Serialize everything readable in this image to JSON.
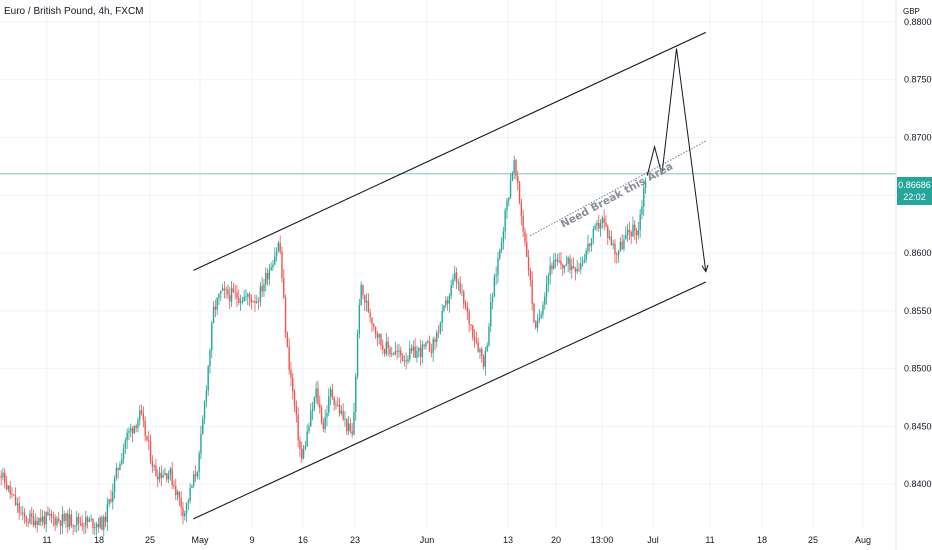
{
  "header": {
    "title": "Euro / British Pound, 4h, FXCM",
    "currency": "GBP"
  },
  "current_price": {
    "value": "0.86686",
    "countdown": "22:02",
    "color": "#26a69a"
  },
  "annotation": {
    "text": "Need Break this Area"
  },
  "colors": {
    "up": "#26a69a",
    "down": "#ef5350",
    "grid": "#f0f3fa",
    "lines": "#131722"
  },
  "chart_data": {
    "type": "candlestick",
    "title": "Euro / British Pound, 4h, FXCM",
    "ylabel": "GBP",
    "ylim": [
      0.8363,
      0.8819
    ],
    "y_ticks": [
      "0.88000",
      "0.87500",
      "0.87000",
      "0.86500",
      "0.86000",
      "0.85500",
      "0.85000",
      "0.84500",
      "0.84000"
    ],
    "x_ticks": [
      "11",
      "18",
      "25",
      "May",
      "9",
      "16",
      "23",
      "Jun",
      "13",
      "20",
      "13:00",
      "Jul",
      "11",
      "18",
      "25",
      "Aug"
    ],
    "grid": true,
    "current_price": 0.86686,
    "anchors": [
      {
        "x": "Apr 4",
        "y": 0.842
      },
      {
        "x": "Apr 8",
        "y": 0.837
      },
      {
        "x": "Apr 12",
        "y": 0.837
      },
      {
        "x": "Apr 19",
        "y": 0.8366
      },
      {
        "x": "Apr 22",
        "y": 0.844
      },
      {
        "x": "Apr 24",
        "y": 0.846
      },
      {
        "x": "Apr 26",
        "y": 0.841
      },
      {
        "x": "Apr 28",
        "y": 0.841
      },
      {
        "x": "Apr 30",
        "y": 0.8375
      },
      {
        "x": "May 2",
        "y": 0.842
      },
      {
        "x": "May 4",
        "y": 0.855
      },
      {
        "x": "May 5",
        "y": 0.8565
      },
      {
        "x": "May 10",
        "y": 0.856
      },
      {
        "x": "May 13",
        "y": 0.861
      },
      {
        "x": "May 14",
        "y": 0.852
      },
      {
        "x": "May 16",
        "y": 0.842
      },
      {
        "x": "May 18",
        "y": 0.848
      },
      {
        "x": "May 19",
        "y": 0.845
      },
      {
        "x": "May 20",
        "y": 0.848
      },
      {
        "x": "May 23",
        "y": 0.844
      },
      {
        "x": "May 24",
        "y": 0.857
      },
      {
        "x": "May 27",
        "y": 0.852
      },
      {
        "x": "May 30",
        "y": 0.851
      },
      {
        "x": "Jun 3",
        "y": 0.852
      },
      {
        "x": "Jun 6",
        "y": 0.858
      },
      {
        "x": "Jun 8",
        "y": 0.854
      },
      {
        "x": "Jun 10",
        "y": 0.8505
      },
      {
        "x": "Jun 11",
        "y": 0.856
      },
      {
        "x": "Jun 13",
        "y": 0.864
      },
      {
        "x": "Jun 14",
        "y": 0.868
      },
      {
        "x": "Jun 16",
        "y": 0.859
      },
      {
        "x": "Jun 17",
        "y": 0.853
      },
      {
        "x": "Jun 19",
        "y": 0.859
      },
      {
        "x": "Jun 23",
        "y": 0.859
      },
      {
        "x": "Jun 26",
        "y": 0.863
      },
      {
        "x": "Jun 28",
        "y": 0.86
      },
      {
        "x": "Jun 30",
        "y": 0.862
      },
      {
        "x": "Jul 1",
        "y": 0.862
      },
      {
        "x": "Jul 2",
        "y": 0.8666
      }
    ],
    "overlays": {
      "channel_upper": [
        {
          "x": "May 1",
          "y": 0.8585
        },
        {
          "x": "Jul 10",
          "y": 0.8791
        }
      ],
      "channel_lower": [
        {
          "x": "May 1",
          "y": 0.837
        },
        {
          "x": "Jul 10",
          "y": 0.8575
        }
      ],
      "resistance_line": [
        {
          "x": "Jun 16",
          "y": 0.8615
        },
        {
          "x": "Jul 10",
          "y": 0.8697
        }
      ],
      "projection": [
        {
          "x": "Jul 2",
          "y": 0.8667
        },
        {
          "x": "Jul 3",
          "y": 0.8692
        },
        {
          "x": "Jul 4",
          "y": 0.8668
        },
        {
          "x": "Jul 6",
          "y": 0.8777
        },
        {
          "x": "Jul 10",
          "y": 0.8584
        }
      ]
    }
  }
}
